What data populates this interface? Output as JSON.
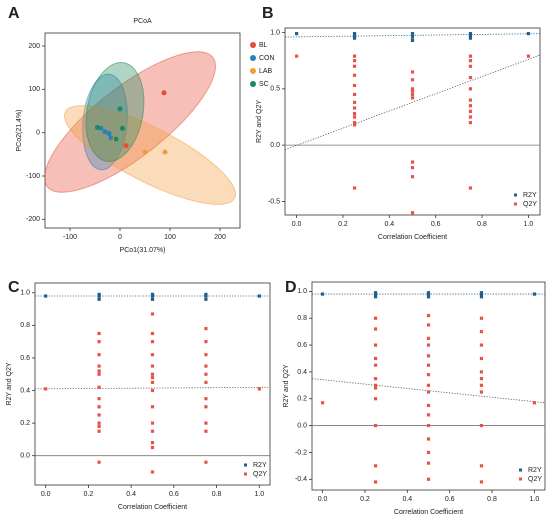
{
  "chart_data": [
    {
      "type": "scatter",
      "label": "A",
      "title": "PCoA",
      "x_label": "PCo1(31.07%)",
      "y_label": "PCo2(21.4%)",
      "xlim": [
        -150,
        240
      ],
      "xticks": [
        -100,
        0,
        100,
        200
      ],
      "ylim": [
        -220,
        230
      ],
      "yticks": [
        -200,
        -100,
        0,
        100,
        200
      ],
      "legend": "right",
      "ellipses": true,
      "series": [
        {
          "name": "BL",
          "color": "#e64b35",
          "x": [
            88,
            12
          ],
          "values": [
            92,
            -30
          ]
        },
        {
          "name": "CON",
          "color": "#2c7fb8",
          "x": [
            -38,
            -30,
            -22,
            -18
          ],
          "values": [
            10,
            2,
            -2,
            -12
          ]
        },
        {
          "name": "LAB",
          "color": "#f39b3a",
          "x": [
            50,
            90,
            -10
          ],
          "values": [
            -45,
            -45,
            -15
          ]
        },
        {
          "name": "SC",
          "color": "#1a8a5a",
          "x": [
            0,
            -45,
            -8,
            5
          ],
          "values": [
            55,
            12,
            -15,
            10
          ]
        }
      ]
    },
    {
      "type": "scatter",
      "label": "B",
      "x_label": "Correlation Coefficient",
      "y_label": "R2Y and Q2Y",
      "xlim": [
        -0.05,
        1.05
      ],
      "xticks": [
        {
          "value": 0,
          "label": "0.0"
        },
        0.2,
        0.4,
        0.6,
        0.8,
        {
          "value": 1,
          "label": "1.0"
        }
      ],
      "ylim": [
        -0.62,
        1.04
      ],
      "yticks": [
        -0.5,
        {
          "value": 0,
          "label": "0.0"
        },
        0.5,
        {
          "value": 1,
          "label": "1.0"
        }
      ],
      "legend": "lower right",
      "zero_line": true,
      "series": [
        {
          "name": "R2Y",
          "color": "#1f5f8b",
          "x": [
            0,
            0.25,
            0.25,
            0.25,
            0.5,
            0.5,
            0.5,
            0.75,
            0.75,
            0.75,
            1
          ],
          "values": [
            0.99,
            0.99,
            0.97,
            0.95,
            0.99,
            0.96,
            0.93,
            0.99,
            0.97,
            0.95,
            0.99
          ]
        },
        {
          "name": "Q2Y",
          "color": "#e8524a",
          "x": [
            0,
            0.25,
            0.25,
            0.25,
            0.25,
            0.25,
            0.25,
            0.25,
            0.25,
            0.25,
            0.25,
            0.25,
            0.25,
            0.25,
            0.5,
            0.5,
            0.5,
            0.5,
            0.5,
            0.5,
            0.5,
            0.5,
            0.5,
            0.5,
            0.75,
            0.75,
            0.75,
            0.75,
            0.75,
            0.75,
            0.75,
            0.75,
            0.75,
            0.75,
            0.75,
            1
          ],
          "values": [
            0.79,
            0.79,
            0.75,
            0.7,
            0.62,
            0.53,
            0.45,
            0.38,
            0.33,
            0.28,
            0.25,
            0.2,
            0.18,
            -0.38,
            0.65,
            0.58,
            0.5,
            0.48,
            0.45,
            0.42,
            -0.15,
            -0.2,
            -0.28,
            -0.6,
            0.79,
            0.75,
            0.7,
            0.6,
            0.5,
            0.4,
            0.35,
            0.3,
            0.25,
            0.2,
            -0.38,
            0.79
          ]
        }
      ],
      "lines": [
        {
          "color": "#1f5f8b",
          "x": [
            -0.05,
            1.05
          ],
          "values": [
            0.96,
            0.99
          ]
        },
        {
          "color": "#555555",
          "x": [
            -0.05,
            1.05
          ],
          "values": [
            -0.04,
            0.8
          ]
        }
      ]
    },
    {
      "type": "scatter",
      "label": "C",
      "x_label": "Correlation Coefficient",
      "y_label": "R2Y and Q2Y",
      "xlim": [
        -0.05,
        1.05
      ],
      "xticks": [
        {
          "value": 0,
          "label": "0.0"
        },
        0.2,
        0.4,
        0.6,
        0.8,
        {
          "value": 1,
          "label": "1.0"
        }
      ],
      "ylim": [
        -0.18,
        1.06
      ],
      "yticks": [
        {
          "value": 0,
          "label": "0.0"
        },
        0.2,
        0.4,
        0.6,
        0.8,
        {
          "value": 1,
          "label": "1.0"
        }
      ],
      "legend": "lower right",
      "zero_line": true,
      "series": [
        {
          "name": "R2Y",
          "color": "#1f5f8b",
          "x": [
            0,
            0.25,
            0.25,
            0.25,
            0.5,
            0.5,
            0.5,
            0.75,
            0.75,
            0.75,
            1
          ],
          "values": [
            0.98,
            0.99,
            0.98,
            0.96,
            0.99,
            0.98,
            0.96,
            0.99,
            0.98,
            0.96,
            0.98
          ]
        },
        {
          "name": "Q2Y",
          "color": "#e8524a",
          "x": [
            0,
            0.25,
            0.25,
            0.25,
            0.25,
            0.25,
            0.25,
            0.25,
            0.25,
            0.25,
            0.25,
            0.25,
            0.25,
            0.25,
            0.25,
            0.5,
            0.5,
            0.5,
            0.5,
            0.5,
            0.5,
            0.5,
            0.5,
            0.5,
            0.5,
            0.5,
            0.5,
            0.5,
            0.5,
            0.5,
            0.75,
            0.75,
            0.75,
            0.75,
            0.75,
            0.75,
            0.75,
            0.75,
            0.75,
            0.75,
            0.75,
            1
          ],
          "values": [
            0.41,
            0.75,
            0.7,
            0.62,
            0.55,
            0.52,
            0.5,
            0.42,
            0.35,
            0.3,
            0.25,
            0.2,
            0.18,
            0.15,
            -0.04,
            0.87,
            0.75,
            0.7,
            0.62,
            0.55,
            0.5,
            0.48,
            0.45,
            0.4,
            0.3,
            0.2,
            0.15,
            0.08,
            0.05,
            -0.1,
            0.78,
            0.7,
            0.62,
            0.55,
            0.5,
            0.45,
            0.35,
            0.3,
            0.2,
            0.15,
            -0.04,
            0.41
          ]
        }
      ],
      "lines": [
        {
          "color": "#1f5f8b",
          "x": [
            -0.05,
            1.05
          ],
          "values": [
            0.98,
            0.98
          ]
        },
        {
          "color": "#555555",
          "x": [
            -0.05,
            1.05
          ],
          "values": [
            0.41,
            0.42
          ]
        }
      ]
    },
    {
      "type": "scatter",
      "label": "D",
      "x_label": "Correlation Coefficient",
      "y_label": "R2Y and Q2Y",
      "xlim": [
        -0.05,
        1.05
      ],
      "xticks": [
        {
          "value": 0,
          "label": "0.0"
        },
        0.2,
        0.4,
        0.6,
        0.8,
        {
          "value": 1,
          "label": "1.0"
        }
      ],
      "ylim": [
        -0.48,
        1.07
      ],
      "yticks": [
        -0.4,
        -0.2,
        {
          "value": 0,
          "label": "0.0"
        },
        0.2,
        0.4,
        0.6,
        0.8,
        {
          "value": 1,
          "label": "1.0"
        }
      ],
      "legend": "lower right",
      "zero_line": true,
      "series": [
        {
          "name": "R2Y",
          "color": "#1f5f8b",
          "x": [
            0,
            0.25,
            0.25,
            0.25,
            0.5,
            0.5,
            0.5,
            0.75,
            0.75,
            0.75,
            1
          ],
          "values": [
            0.98,
            0.99,
            0.98,
            0.96,
            0.99,
            0.98,
            0.96,
            0.99,
            0.98,
            0.96,
            0.98
          ]
        },
        {
          "name": "Q2Y",
          "color": "#e8524a",
          "x": [
            0,
            0.25,
            0.25,
            0.25,
            0.25,
            0.25,
            0.25,
            0.25,
            0.25,
            0.25,
            0.25,
            0.25,
            0.25,
            0.5,
            0.5,
            0.5,
            0.5,
            0.5,
            0.5,
            0.5,
            0.5,
            0.5,
            0.5,
            0.5,
            0.5,
            0.5,
            0.5,
            0.5,
            0.5,
            0.75,
            0.75,
            0.75,
            0.75,
            0.75,
            0.75,
            0.75,
            0.75,
            0.75,
            0.75,
            0.75,
            1
          ],
          "values": [
            0.17,
            0.8,
            0.72,
            0.6,
            0.5,
            0.45,
            0.35,
            0.3,
            0.28,
            0.2,
            0.0,
            -0.3,
            -0.42,
            0.82,
            0.75,
            0.65,
            0.6,
            0.52,
            0.45,
            0.38,
            0.3,
            0.25,
            0.15,
            0.08,
            0.0,
            -0.1,
            -0.2,
            -0.28,
            -0.4,
            0.8,
            0.7,
            0.6,
            0.5,
            0.4,
            0.35,
            0.3,
            0.25,
            0.0,
            -0.3,
            -0.42,
            0.17
          ]
        }
      ],
      "lines": [
        {
          "color": "#1f5f8b",
          "x": [
            -0.05,
            1.05
          ],
          "values": [
            0.98,
            0.98
          ]
        },
        {
          "color": "#555555",
          "x": [
            -0.05,
            1.05
          ],
          "values": [
            0.35,
            0.17
          ]
        }
      ]
    }
  ]
}
